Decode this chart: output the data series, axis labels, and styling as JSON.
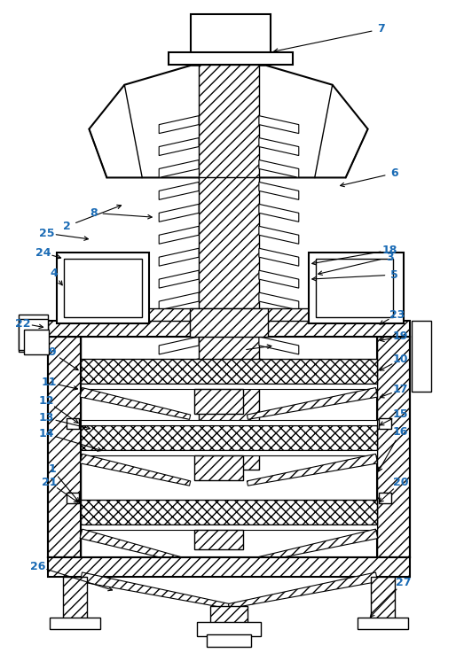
{
  "bg_color": "#ffffff",
  "line_color": "#000000",
  "label_color": "#1a6bb5",
  "figsize": [
    5.14,
    7.37
  ],
  "dpi": 100
}
